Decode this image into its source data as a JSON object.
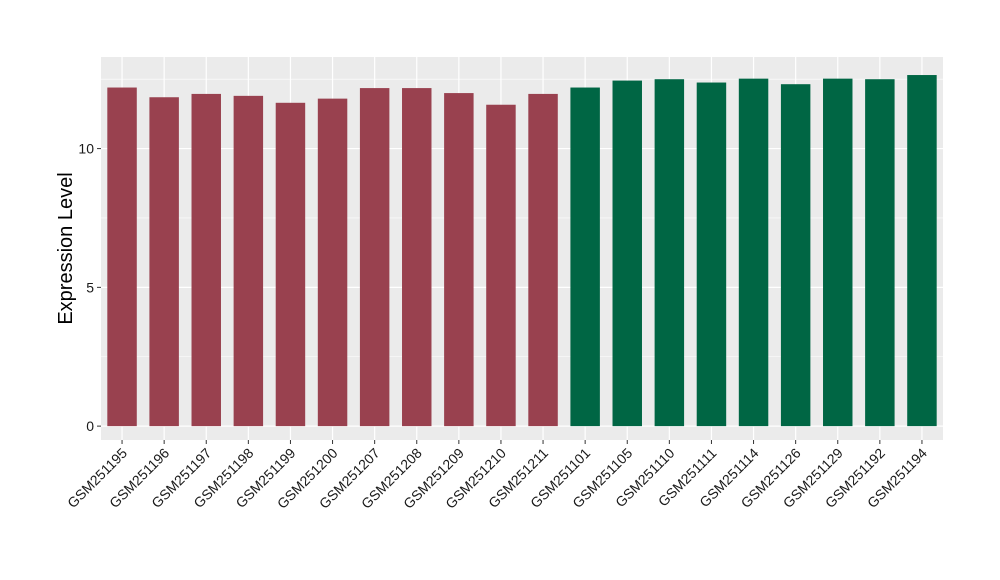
{
  "chart_data": {
    "type": "bar",
    "title": "",
    "xlabel": "",
    "ylabel": "Expression Level",
    "ylim": [
      -0.5,
      13.3
    ],
    "yticks": [
      0,
      5,
      10
    ],
    "grid": true,
    "legend": "none",
    "categories": [
      "GSM251195",
      "GSM251196",
      "GSM251197",
      "GSM251198",
      "GSM251199",
      "GSM251200",
      "GSM251207",
      "GSM251208",
      "GSM251209",
      "GSM251210",
      "GSM251211",
      "GSM251101",
      "GSM251105",
      "GSM251110",
      "GSM251111",
      "GSM251114",
      "GSM251126",
      "GSM251129",
      "GSM251192",
      "GSM251194"
    ],
    "values": [
      12.2,
      11.85,
      11.97,
      11.9,
      11.65,
      11.8,
      12.18,
      12.18,
      12.0,
      11.58,
      11.97,
      12.2,
      12.45,
      12.5,
      12.38,
      12.52,
      12.32,
      12.52,
      12.5,
      12.65
    ],
    "group_index": [
      0,
      0,
      0,
      0,
      0,
      0,
      0,
      0,
      0,
      0,
      0,
      1,
      1,
      1,
      1,
      1,
      1,
      1,
      1,
      1
    ],
    "colors": [
      "#99414f",
      "#006644"
    ],
    "panel_color": "#ebebeb",
    "grid_color": "#ffffff"
  }
}
